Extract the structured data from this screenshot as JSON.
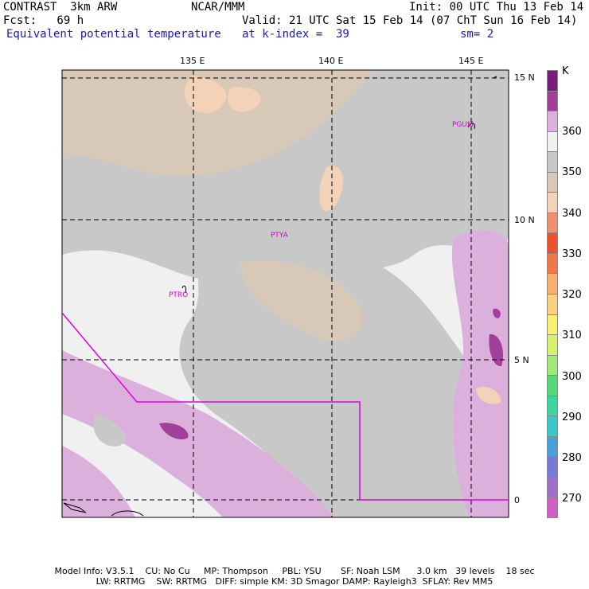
{
  "header": {
    "title": "CONTRAST  3km ARW",
    "org": "NCAR/MMM",
    "init": "Init: 00 UTC Thu 13 Feb 14",
    "fcst": "Fcst:   69 h",
    "valid": "Valid: 21 UTC Sat 15 Feb 14 (07 ChT Sun 16 Feb 14)",
    "field": "Equivalent potential temperature",
    "level": "at k-index =  39",
    "smooth": "sm= 2"
  },
  "axes": {
    "lon_labels": [
      "135 E",
      "140 E",
      "145 E"
    ],
    "lat_labels": [
      "15 N",
      "10 N",
      "5 N",
      "0"
    ]
  },
  "stations": [
    "PGUM",
    "PTYA",
    "PTRO"
  ],
  "colorbar": {
    "unit": "K",
    "labels": [
      "360",
      "350",
      "340",
      "330",
      "320",
      "310",
      "300",
      "290",
      "280",
      "270"
    ],
    "colors": [
      "#7a1a7a",
      "#a0409a",
      "#dcb0dc",
      "#f0f0f0",
      "#c8c8c8",
      "#d8c8b8",
      "#f4d2b8",
      "#f09070",
      "#f05030",
      "#f07848",
      "#f8b070",
      "#f8d080",
      "#f8f070",
      "#d8f070",
      "#a0e878",
      "#58d878",
      "#38d8a0",
      "#38c8c8",
      "#48a0d8",
      "#7878d8",
      "#a070c8",
      "#d060c8"
    ]
  },
  "footer": {
    "line1": "Model Info: V3.5.1    CU: No Cu     MP: Thompson     PBL: YSU       SF: Noah LSM      3.0 km   39 levels    18 sec",
    "line2": "LW: RRTMG    SW: RRTMG   DIFF: simple KM: 3D Smagor DAMP: Rayleigh3  SFLAY: Rev MM5"
  }
}
